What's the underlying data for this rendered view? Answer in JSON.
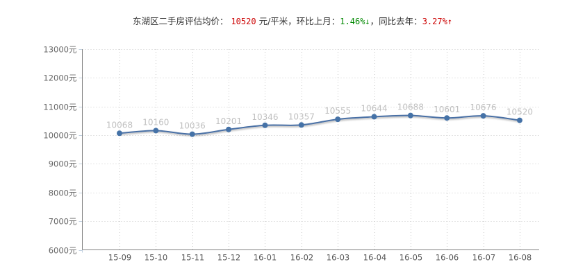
{
  "header": {
    "label": "东湖区二手房评估均价：",
    "price": "10520",
    "unit": "元/平米，",
    "mom_label": "环比上月：",
    "mom_value": "1.46%",
    "mom_arrow": "↓",
    "sep": "，",
    "yoy_label": "同比去年：",
    "yoy_value": "3.27%",
    "yoy_arrow": "↑"
  },
  "colors": {
    "line": "#4a6fa5",
    "point": "#4572a7",
    "label": "#c0c0c0",
    "grid": "#c8c8c8",
    "axis": "#7f7f7f",
    "price_red": "#cc0000",
    "mom_green": "#008800"
  },
  "chart_data": {
    "type": "line",
    "title": "东湖区二手房评估均价",
    "xlabel": "",
    "ylabel": "",
    "categories": [
      "15-09",
      "15-10",
      "15-11",
      "15-12",
      "16-01",
      "16-02",
      "16-03",
      "16-04",
      "16-05",
      "16-06",
      "16-07",
      "16-08"
    ],
    "series": [
      {
        "name": "评估均价",
        "values": [
          10068,
          10160,
          10036,
          10201,
          10346,
          10357,
          10555,
          10644,
          10688,
          10601,
          10676,
          10520
        ]
      }
    ],
    "yticks": [
      "6000元",
      "7000元",
      "8000元",
      "9000元",
      "10000元",
      "11000元",
      "12000元",
      "13000元"
    ],
    "ylim": [
      6000,
      13000
    ],
    "grid": true,
    "legend": "none",
    "data_labels": true
  }
}
